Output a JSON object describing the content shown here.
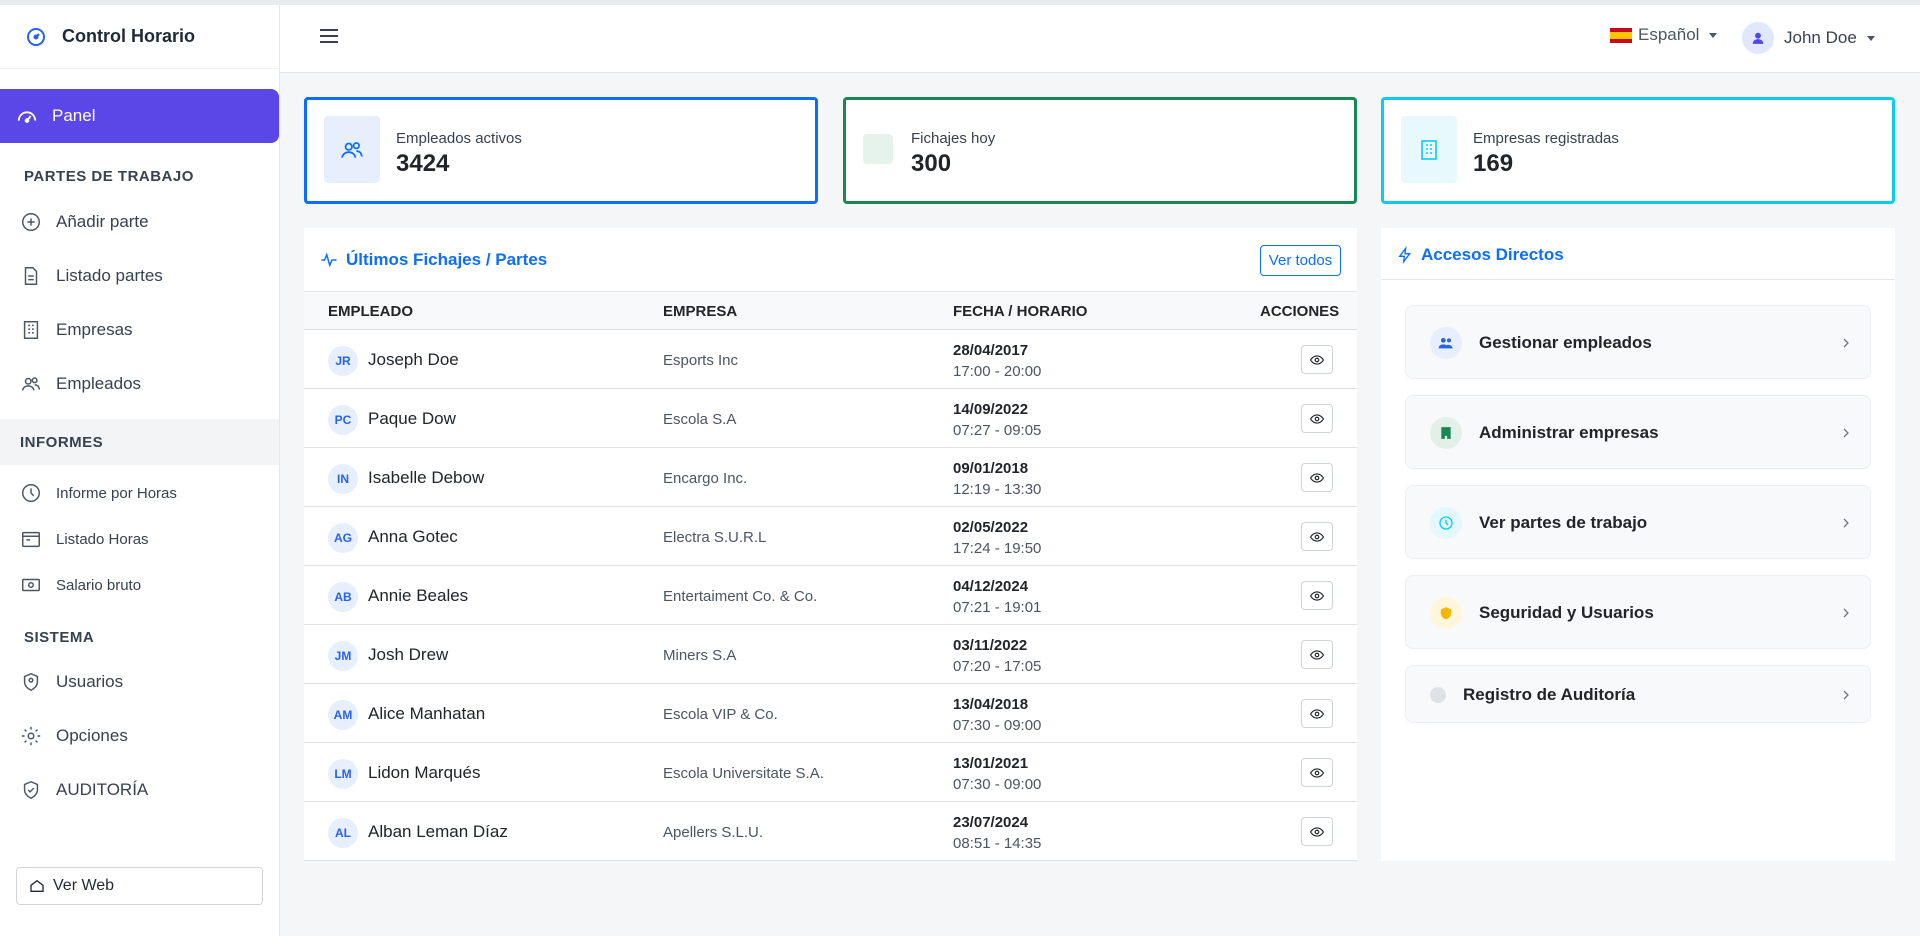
{
  "brand": {
    "title": "Control Horario"
  },
  "sidebar": {
    "active": "Panel",
    "sections": {
      "partes": "PARTES DE TRABAJO",
      "informes": "INFORMES",
      "sistema": "SISTEMA"
    },
    "items": [
      {
        "label": "Añadir parte"
      },
      {
        "label": "Listado partes"
      },
      {
        "label": "Empresas"
      },
      {
        "label": "Empleados"
      },
      {
        "label": "Informe por Horas"
      },
      {
        "label": "Listado Horas"
      },
      {
        "label": "Salario bruto"
      },
      {
        "label": "Usuarios"
      },
      {
        "label": "Opciones"
      },
      {
        "label": "AUDITORÍA"
      }
    ],
    "ver_web": "Ver Web"
  },
  "header": {
    "language": "Español",
    "user": "John Doe"
  },
  "stats": [
    {
      "label": "Empleados activos",
      "value": "3424",
      "color": "#0d6efd"
    },
    {
      "label": "Fichajes hoy",
      "value": "300",
      "color": "#198754"
    },
    {
      "label": "Empresas registradas",
      "value": "169",
      "color": "#0dcaf0"
    }
  ],
  "fichajes": {
    "title": "Últimos Fichajes / Partes",
    "ver_todos": "Ver todos",
    "columns": [
      "EMPLEADO",
      "EMPRESA",
      "FECHA / HORARIO",
      "ACCIONES"
    ],
    "rows": [
      {
        "initials": "JR",
        "name": "Joseph Doe",
        "empresa": "Esports Inc",
        "date": "28/04/2017",
        "time": "17:00 - 20:00"
      },
      {
        "initials": "PC",
        "name": "Paque Dow",
        "empresa": "Escola S.A",
        "date": "14/09/2022",
        "time": "07:27 - 09:05"
      },
      {
        "initials": "IN",
        "name": "Isabelle Debow",
        "empresa": "Encargo Inc.",
        "date": "09/01/2018",
        "time": "12:19 - 13:30"
      },
      {
        "initials": "AG",
        "name": "Anna Gotec",
        "empresa": "Electra S.U.R.L",
        "date": "02/05/2022",
        "time": "17:24 - 19:50"
      },
      {
        "initials": "AB",
        "name": "Annie Beales",
        "empresa": "Entertaiment Co. & Co.",
        "date": "04/12/2024",
        "time": "07:21 - 19:01"
      },
      {
        "initials": "JM",
        "name": "Josh Drew",
        "empresa": "Miners S.A",
        "date": "03/11/2022",
        "time": "07:20 - 17:05"
      },
      {
        "initials": "AM",
        "name": "Alice Manhatan",
        "empresa": "Escola VIP & Co.",
        "date": "13/04/2018",
        "time": "07:30 - 09:00"
      },
      {
        "initials": "LM",
        "name": "Lidon Marqués",
        "empresa": "Escola Universitate S.A.",
        "date": "13/01/2021",
        "time": "07:30 - 09:00"
      },
      {
        "initials": "AL",
        "name": "Alban Leman Díaz",
        "empresa": "Apellers S.L.U.",
        "date": "23/07/2024",
        "time": "08:51 - 14:35"
      }
    ]
  },
  "accesos": {
    "title": "Accesos Directos",
    "items": [
      {
        "label": "Gestionar empleados",
        "icon": "users-icon"
      },
      {
        "label": "Administrar empresas",
        "icon": "building-icon"
      },
      {
        "label": "Ver partes de trabajo",
        "icon": "clock-icon"
      },
      {
        "label": "Seguridad y Usuarios",
        "icon": "shield-icon"
      },
      {
        "label": "Registro de Auditoría",
        "icon": "dot-icon"
      }
    ]
  }
}
